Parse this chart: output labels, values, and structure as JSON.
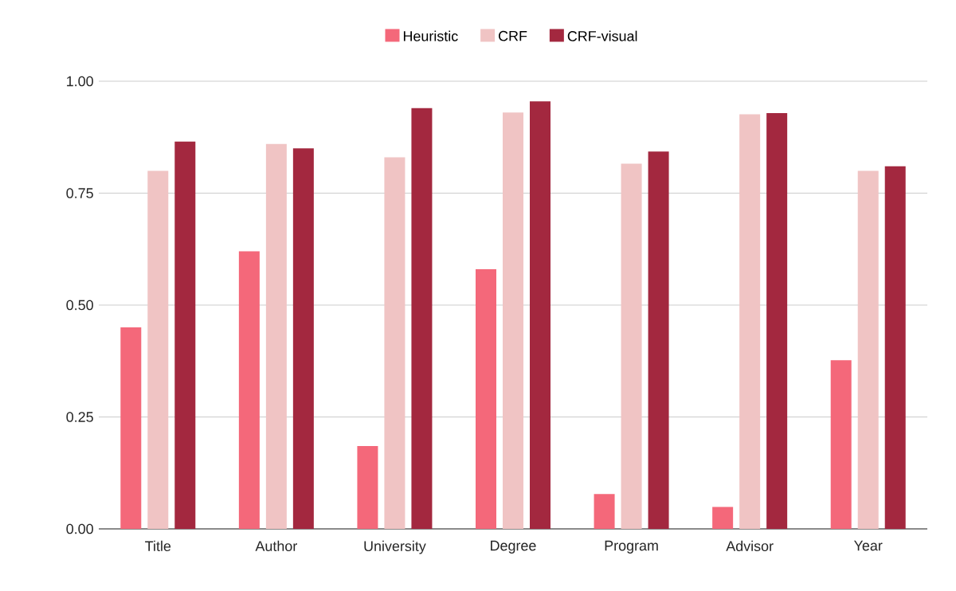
{
  "chart_data": {
    "type": "bar",
    "categories": [
      "Title",
      "Author",
      "University",
      "Degree",
      "Program",
      "Advisor",
      "Year"
    ],
    "series": [
      {
        "name": "Heuristic",
        "color": "#f4687a",
        "values": [
          0.45,
          0.62,
          0.185,
          0.58,
          0.078,
          0.049,
          0.377
        ]
      },
      {
        "name": "CRF",
        "color": "#f0c4c4",
        "values": [
          0.8,
          0.86,
          0.83,
          0.93,
          0.816,
          0.926,
          0.8
        ]
      },
      {
        "name": "CRF-visual",
        "color": "#a3283f",
        "values": [
          0.865,
          0.85,
          0.94,
          0.955,
          0.843,
          0.929,
          0.81
        ]
      }
    ],
    "ylim": [
      0,
      1
    ],
    "yticks": [
      {
        "value": 0,
        "label": "0.00"
      },
      {
        "value": 0.25,
        "label": "0.25"
      },
      {
        "value": 0.5,
        "label": "0.50"
      },
      {
        "value": 0.75,
        "label": "0.75"
      },
      {
        "value": 1,
        "label": "1.00"
      }
    ],
    "grid": "y",
    "legend": "top"
  }
}
